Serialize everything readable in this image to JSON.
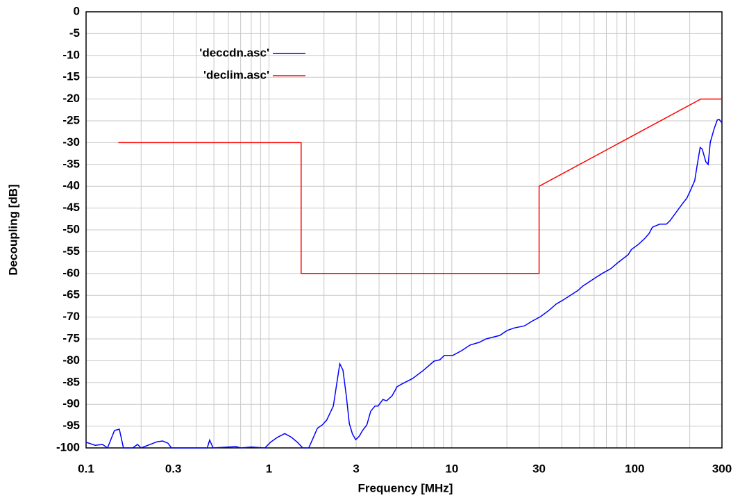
{
  "chart_data": {
    "type": "line",
    "xlabel": "Frequency [MHz]",
    "ylabel": "Decoupling [dB]",
    "xscale": "log",
    "xlim": [
      0.1,
      300
    ],
    "ylim": [
      -100,
      0
    ],
    "xticks": [
      0.1,
      0.3,
      1,
      3,
      10,
      30,
      100,
      300
    ],
    "xminor_grid": [
      0.2,
      0.4,
      0.5,
      0.6,
      0.7,
      0.8,
      0.9,
      2,
      4,
      5,
      6,
      7,
      8,
      9,
      20,
      40,
      50,
      60,
      70,
      80,
      90,
      200
    ],
    "yticks": [
      0,
      -5,
      -10,
      -15,
      -20,
      -25,
      -30,
      -35,
      -40,
      -45,
      -50,
      -55,
      -60,
      -65,
      -70,
      -75,
      -80,
      -85,
      -90,
      -95,
      -100
    ],
    "grid": true,
    "legend": "upper left",
    "series": [
      {
        "name": "'deccdn.asc'",
        "color": "#0000ff",
        "x": [
          0.1,
          0.112,
          0.123,
          0.131,
          0.143,
          0.152,
          0.16,
          0.18,
          0.191,
          0.2,
          0.244,
          0.262,
          0.28,
          0.293,
          0.46,
          0.474,
          0.495,
          0.66,
          0.7,
          0.8,
          0.95,
          1.02,
          1.11,
          1.22,
          1.33,
          1.43,
          1.53,
          1.65,
          1.73,
          1.84,
          1.96,
          2.07,
          2.25,
          2.37,
          2.44,
          2.54,
          2.65,
          2.75,
          2.86,
          2.98,
          3.12,
          3.25,
          3.43,
          3.6,
          3.8,
          3.95,
          4.2,
          4.4,
          4.7,
          4.9,
          5.0,
          5.3,
          6.1,
          7.0,
          8.0,
          8.6,
          9.1,
          10.1,
          11.3,
          12.6,
          14.1,
          15.4,
          18.3,
          20,
          21.9,
          25,
          27.3,
          30.5,
          33.9,
          37.2,
          40.2,
          44.5,
          48.9,
          52,
          58,
          62,
          67,
          74,
          81,
          92,
          96,
          105,
          114,
          120,
          125,
          137,
          149,
          156,
          169,
          184,
          193,
          201,
          213,
          219,
          228,
          234,
          245,
          252,
          259,
          272,
          283,
          290,
          300
        ],
        "values": [
          -98.7,
          -99.4,
          -99.2,
          -100,
          -96,
          -95.7,
          -100,
          -100,
          -99.2,
          -100,
          -98.6,
          -98.4,
          -98.9,
          -100,
          -100,
          -98.2,
          -100,
          -99.7,
          -100,
          -99.8,
          -100,
          -98.7,
          -97.6,
          -96.7,
          -97.6,
          -98.7,
          -100,
          -100,
          -98.1,
          -95.5,
          -94.7,
          -93.6,
          -90.4,
          -84.1,
          -80.7,
          -82.2,
          -88.1,
          -94.4,
          -96.8,
          -98.1,
          -97.3,
          -96.0,
          -94.7,
          -91.6,
          -90.4,
          -90.4,
          -88.9,
          -89.2,
          -88.1,
          -86.8,
          -86.0,
          -85.4,
          -84.1,
          -82.2,
          -80.1,
          -79.8,
          -78.8,
          -78.8,
          -77.7,
          -76.4,
          -75.8,
          -75.0,
          -74.2,
          -73.1,
          -72.5,
          -72.0,
          -71.0,
          -69.9,
          -68.5,
          -67.0,
          -66.2,
          -65.0,
          -63.9,
          -62.9,
          -61.6,
          -60.8,
          -59.9,
          -58.9,
          -57.5,
          -55.7,
          -54.5,
          -53.3,
          -51.9,
          -50.8,
          -49.4,
          -48.7,
          -48.7,
          -47.9,
          -45.9,
          -43.8,
          -42.7,
          -41.1,
          -38.7,
          -35.5,
          -31.1,
          -31.5,
          -34.4,
          -35.0,
          -29.9,
          -26.8,
          -24.8,
          -24.7,
          -25.5
        ]
      },
      {
        "name": "'declim.asc'",
        "color": "#ff0000",
        "x": [
          0.15,
          1.5,
          1.5,
          30,
          30,
          230,
          300
        ],
        "values": [
          -30,
          -30,
          -60,
          -60,
          -40,
          -20,
          -20
        ]
      }
    ]
  }
}
